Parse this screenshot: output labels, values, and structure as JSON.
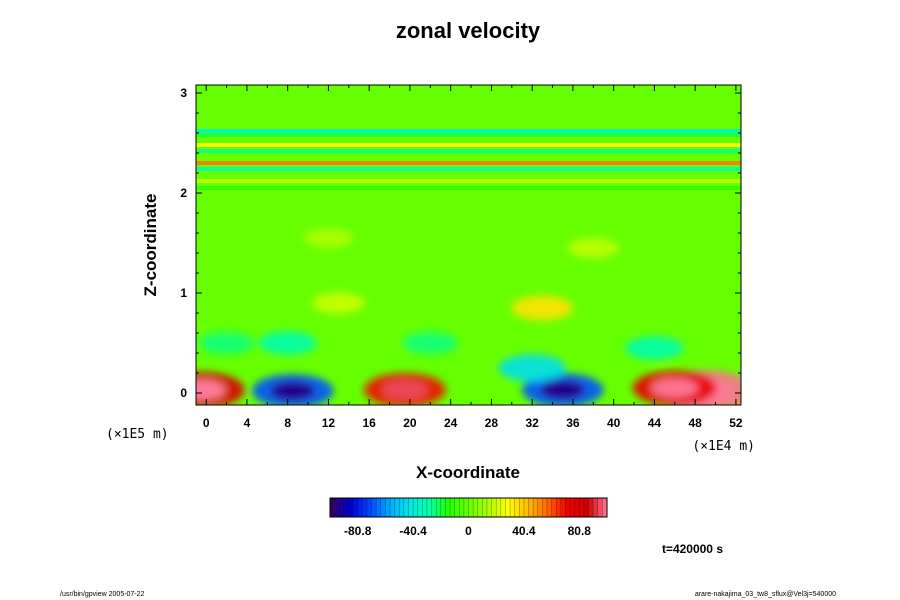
{
  "chart_data": {
    "type": "heatmap",
    "title": "zonal velocity",
    "xlabel": "X-coordinate",
    "ylabel": "Z-coordinate",
    "x_unit": "(×1E4 m)",
    "y_unit": "(×1E5 m)",
    "xlim": [
      -1,
      52.5
    ],
    "ylim": [
      -0.12,
      3.08
    ],
    "xticks": [
      0,
      4,
      8,
      12,
      16,
      20,
      24,
      28,
      32,
      36,
      40,
      44,
      48,
      52
    ],
    "yticks": [
      0,
      1,
      2,
      3
    ],
    "colorbar": {
      "range": [
        -101,
        101
      ],
      "ticks": [
        -80.8,
        -40.4,
        0,
        40.4,
        80.8
      ],
      "tick_labels": [
        "-80.8",
        "-40.4",
        "0",
        "40.4",
        "80.8"
      ],
      "colors": [
        "#3a005a",
        "#0000cc",
        "#0044ff",
        "#00aaff",
        "#00e6e6",
        "#00ffaa",
        "#22ff00",
        "#66ff00",
        "#aaff00",
        "#ffff00",
        "#ffbb00",
        "#ff6600",
        "#ee0000",
        "#cc0000",
        "#ff7a9a"
      ]
    },
    "time_label": "t=420000 s",
    "features": [
      {
        "x": 49,
        "z": 0.02,
        "value": 100
      },
      {
        "x": 46,
        "z": 0.05,
        "value": 75
      },
      {
        "x": 19.5,
        "z": 0.03,
        "value": 70
      },
      {
        "x": -0.5,
        "z": 0.03,
        "value": 80
      },
      {
        "x": 8.5,
        "z": 0.02,
        "value": -70
      },
      {
        "x": 35,
        "z": 0.03,
        "value": -70
      },
      {
        "x": 32,
        "z": 0.25,
        "value": -45
      },
      {
        "x": 22,
        "z": 0.5,
        "value": -25
      },
      {
        "x": 8,
        "z": 0.5,
        "value": -30
      },
      {
        "x": 44,
        "z": 0.45,
        "value": -30
      },
      {
        "x": 2,
        "z": 0.5,
        "value": -25
      },
      {
        "x": 33,
        "z": 0.85,
        "value": 35
      },
      {
        "x": 13,
        "z": 0.9,
        "value": 20
      },
      {
        "x": 38,
        "z": 1.45,
        "value": 18
      },
      {
        "x": 12,
        "z": 1.55,
        "value": 15
      }
    ],
    "bands": [
      {
        "z": 2.62,
        "value": -35
      },
      {
        "z": 2.58,
        "value": -20
      },
      {
        "z": 2.48,
        "value": 30
      },
      {
        "z": 2.42,
        "value": -25
      },
      {
        "z": 2.3,
        "value": 55
      },
      {
        "z": 2.24,
        "value": -30
      },
      {
        "z": 2.12,
        "value": 18
      },
      {
        "z": 2.05,
        "value": -12
      }
    ]
  },
  "footer": {
    "left": "/usr/bin/gpview 2005-07-22",
    "right": "arare-nakajima_03_tw8_sflux@Vel3j=540000"
  }
}
